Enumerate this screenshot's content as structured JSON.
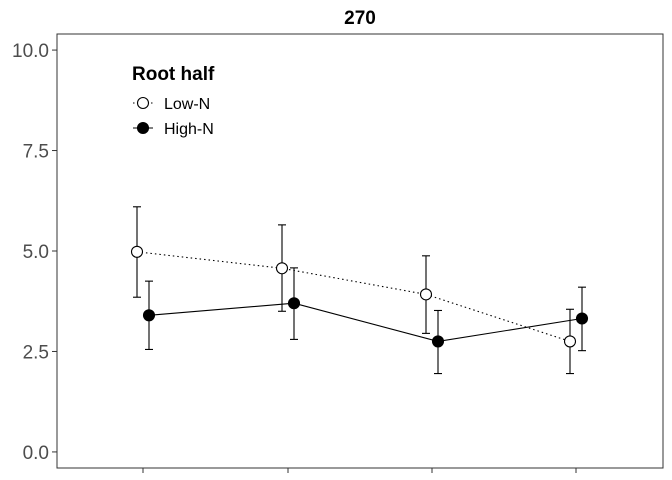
{
  "chart_data": {
    "type": "line",
    "title": "270",
    "xlabel": "",
    "ylabel": "",
    "ylim": [
      -0.4,
      10.4
    ],
    "y_ticks": [
      0.0,
      2.5,
      5.0,
      7.5,
      10.0
    ],
    "y_tick_labels": [
      "0.0",
      "2.5",
      "5.0",
      "7.5",
      "10.0"
    ],
    "x_positions": [
      1,
      2,
      3,
      4
    ],
    "x_tick_labels": [
      "",
      "",
      "",
      ""
    ],
    "grid": false,
    "legend": {
      "title": "Root half",
      "placement": "top-left",
      "entries": [
        {
          "label": "Low-N",
          "marker": "open-circle",
          "line": "dotted"
        },
        {
          "label": "High-N",
          "marker": "filled-circle",
          "line": "solid"
        }
      ]
    },
    "series": [
      {
        "name": "Low-N",
        "values": [
          4.98,
          4.57,
          3.92,
          2.75
        ],
        "error_low": [
          3.85,
          3.5,
          2.95,
          1.95
        ],
        "error_high": [
          6.1,
          5.65,
          4.88,
          3.55
        ],
        "color": "#000000",
        "fill": "none",
        "line_style": "dotted"
      },
      {
        "name": "High-N",
        "values": [
          3.4,
          3.7,
          2.75,
          3.32
        ],
        "error_low": [
          2.55,
          2.8,
          1.95,
          2.52
        ],
        "error_high": [
          4.25,
          4.58,
          3.52,
          4.1
        ],
        "color": "#000000",
        "fill": "#000000",
        "line_style": "solid"
      }
    ]
  }
}
